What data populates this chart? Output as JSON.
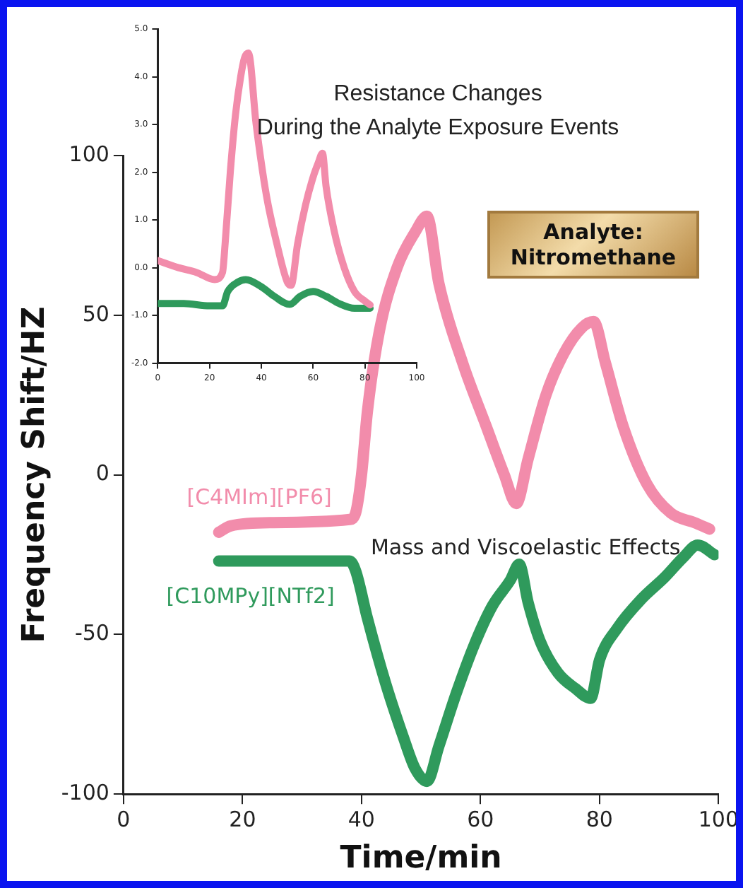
{
  "chart_data": [
    {
      "type": "line",
      "xlabel": "Time/min",
      "ylabel": "Frequency Shift/HZ",
      "xlim": [
        0,
        100
      ],
      "ylim": [
        -100,
        100
      ],
      "xticks": [
        0,
        20,
        40,
        60,
        80,
        100
      ],
      "yticks": [
        -100,
        -50,
        0,
        50,
        100
      ],
      "grid": false,
      "legend": false,
      "annotations": [
        "Mass and Viscoelastic Effects",
        "Analyte: Nitromethane"
      ],
      "series": [
        {
          "name": "[C4MIm][PF6]",
          "color": "#f28cab",
          "x": [
            16,
            18,
            25,
            38,
            39,
            40,
            41,
            43,
            46,
            49,
            51,
            53,
            57,
            61,
            64,
            66,
            68,
            71,
            74,
            77,
            79,
            81,
            84,
            88,
            92,
            96,
            98.5
          ],
          "values": [
            -18,
            -16,
            -15,
            -14,
            -12,
            0,
            20,
            45,
            65,
            76,
            81,
            60,
            35,
            15,
            0,
            -9,
            5,
            25,
            38,
            46,
            48,
            35,
            15,
            -3,
            -12,
            -15,
            -17
          ]
        },
        {
          "name": "[C10MPy][NTf2]",
          "color": "#2f9a5c",
          "x": [
            16,
            20,
            30,
            38,
            39,
            41,
            44,
            47,
            49,
            51,
            53,
            56,
            59,
            62,
            65,
            66.5,
            68,
            70,
            73,
            76,
            78.5,
            80,
            83,
            87,
            91,
            94,
            96.5,
            99.3
          ],
          "values": [
            -27,
            -27,
            -27,
            -27,
            -30,
            -45,
            -65,
            -82,
            -92,
            -96,
            -85,
            -68,
            -53,
            -41,
            -33,
            -28,
            -40,
            -52,
            -62,
            -67,
            -70,
            -58,
            -48,
            -39,
            -32,
            -26,
            -22,
            -25
          ]
        }
      ]
    },
    {
      "type": "line",
      "title": "Resistance Changes During the Analyte Exposure Events",
      "xlim": [
        0,
        100
      ],
      "ylim": [
        -2.0,
        5.0
      ],
      "xticks": [
        0,
        20,
        40,
        60,
        80,
        100
      ],
      "yticks": [
        {
          "value": -2.0,
          "label": "-2.0"
        },
        {
          "value": -1.0,
          "label": "-1.0"
        },
        {
          "value": 0,
          "label": "0.0"
        },
        {
          "value": 1.0,
          "label": "1.0"
        },
        {
          "value": 2.0,
          "label": "2.0"
        },
        {
          "value": 3.0,
          "label": "3.0"
        },
        {
          "value": 4.0,
          "label": "4.0"
        },
        {
          "value": 5.0,
          "label": "5.0"
        }
      ],
      "grid": false,
      "legend": false,
      "series": [
        {
          "color": "#f28cab",
          "x": [
            0,
            8,
            15,
            22,
            25,
            26,
            28,
            30,
            32,
            33.5,
            35,
            38,
            42,
            46,
            50,
            51.5,
            54,
            57,
            60,
            62,
            63.6,
            65,
            68,
            72,
            76,
            80,
            82
          ],
          "values": [
            0.15,
            0.0,
            -0.1,
            -0.25,
            -0.1,
            0.5,
            2.0,
            3.2,
            4.0,
            4.4,
            4.5,
            3.0,
            1.5,
            0.5,
            -0.3,
            -0.37,
            0.5,
            1.3,
            1.9,
            2.2,
            2.4,
            1.7,
            0.8,
            0.0,
            -0.5,
            -0.7,
            -0.78
          ]
        },
        {
          "color": "#2f9a5c",
          "x": [
            0,
            10,
            20,
            25,
            27,
            31,
            34,
            40,
            45,
            51,
            55,
            60,
            65,
            70,
            76,
            82
          ],
          "values": [
            -0.75,
            -0.75,
            -0.8,
            -0.8,
            -0.5,
            -0.3,
            -0.25,
            -0.4,
            -0.6,
            -0.77,
            -0.6,
            -0.5,
            -0.6,
            -0.75,
            -0.85,
            -0.85
          ]
        }
      ]
    }
  ]
}
